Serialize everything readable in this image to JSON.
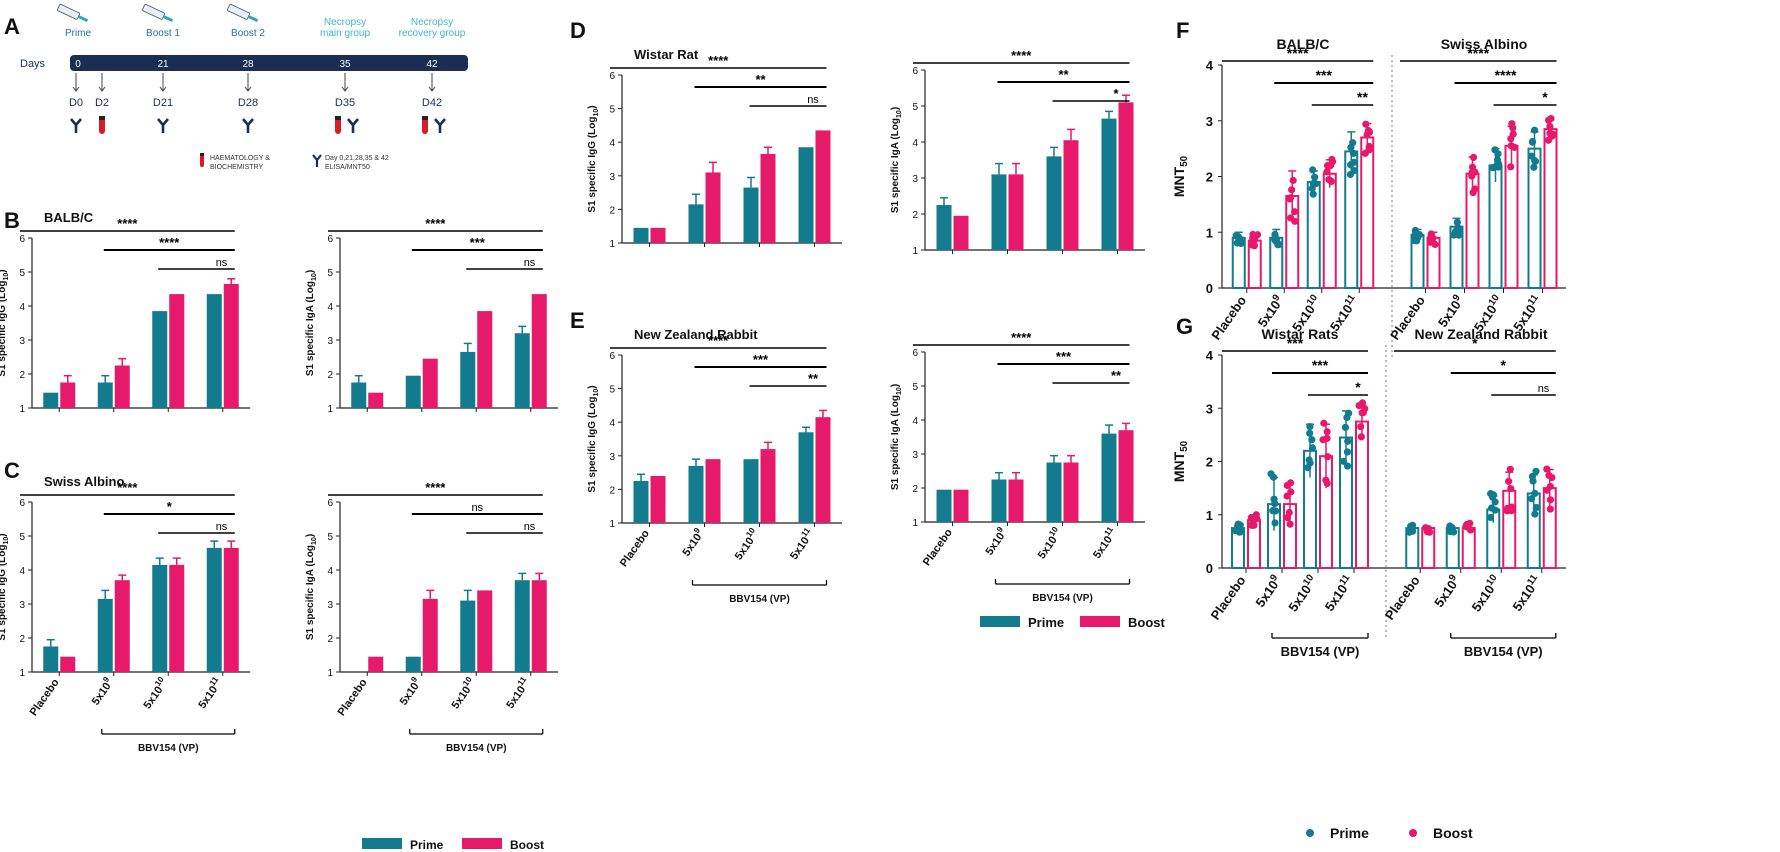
{
  "panel_letters": {
    "A": "A",
    "B": "B",
    "C": "C",
    "D": "D",
    "E": "E",
    "F": "F",
    "G": "G"
  },
  "colors": {
    "prime": "#137b8e",
    "boost": "#e6196a",
    "timeline": "#1a2e55",
    "text": "#111111",
    "grid": "#222222"
  },
  "timeline": {
    "days_label": "Days",
    "events": [
      {
        "label": "Prime",
        "day": "0",
        "color": "#2b6ca3"
      },
      {
        "label": "Boost 1",
        "day": "21",
        "color": "#2b6ca3"
      },
      {
        "label": "Boost 2",
        "day": "28",
        "color": "#2b6ca3"
      },
      {
        "label": "Necropsy main group",
        "day": "35",
        "color": "#3fb7c7"
      },
      {
        "label": "Necropsy recovery group",
        "day": "42",
        "color": "#3fb7c7"
      }
    ],
    "samples": [
      {
        "label": "D0",
        "tube": false,
        "ab": true
      },
      {
        "label": "D2",
        "tube": true,
        "ab": false
      },
      {
        "label": "D21",
        "tube": false,
        "ab": true
      },
      {
        "label": "D28",
        "tube": false,
        "ab": true
      },
      {
        "label": "D35",
        "tube": true,
        "ab": true
      },
      {
        "label": "D42",
        "tube": true,
        "ab": true
      }
    ],
    "legend_tube": "HAEMATOLOGY & BIOCHEMISTRY",
    "legend_ab": "Day 0,21,28,35 & 42 ELISA/MNT50"
  },
  "x_categories": [
    "Placebo",
    "5x10^9",
    "5x10^10",
    "5x10^11"
  ],
  "x_group_label": "BBV154 (VP)",
  "legend": {
    "prime": "Prime",
    "boost": "Boost"
  },
  "chart_data": [
    {
      "id": "B-IgG",
      "panel": "B",
      "title": "BALB/C",
      "type": "bar",
      "ylabel": "S1 specific IgG (Log10)",
      "ylim": [
        1,
        6
      ],
      "series": [
        {
          "name": "Prime",
          "values": [
            1.45,
            1.75,
            3.85,
            4.35
          ],
          "err": [
            0,
            0.2,
            0,
            0
          ]
        },
        {
          "name": "Boost",
          "values": [
            1.75,
            2.25,
            4.35,
            4.65
          ],
          "err": [
            0.2,
            0.2,
            0,
            0.15
          ]
        }
      ],
      "sig": [
        {
          "label": "****",
          "from": 0,
          "to": 3
        },
        {
          "label": "****",
          "from": 1,
          "to": 3
        },
        {
          "label": "ns",
          "from": 2,
          "to": 3
        }
      ]
    },
    {
      "id": "B-IgA",
      "panel": "B",
      "title": "",
      "type": "bar",
      "ylabel": "S1 specific IgA (Log10)",
      "ylim": [
        1,
        6
      ],
      "series": [
        {
          "name": "Prime",
          "values": [
            1.75,
            1.95,
            2.65,
            3.2
          ],
          "err": [
            0.2,
            0,
            0.25,
            0.2
          ]
        },
        {
          "name": "Boost",
          "values": [
            1.45,
            2.45,
            3.85,
            4.35
          ],
          "err": [
            0,
            0,
            0,
            0
          ]
        }
      ],
      "sig": [
        {
          "label": "****",
          "from": 0,
          "to": 3
        },
        {
          "label": "***",
          "from": 1,
          "to": 3
        },
        {
          "label": "ns",
          "from": 2,
          "to": 3
        }
      ]
    },
    {
      "id": "C-IgG",
      "panel": "C",
      "title": "Swiss Albino",
      "type": "bar",
      "ylabel": "S1 specific IgG (Log10)",
      "ylim": [
        1,
        6
      ],
      "series": [
        {
          "name": "Prime",
          "values": [
            1.75,
            3.15,
            4.15,
            4.65
          ],
          "err": [
            0.2,
            0.25,
            0.2,
            0.2
          ]
        },
        {
          "name": "Boost",
          "values": [
            1.45,
            3.7,
            4.15,
            4.65
          ],
          "err": [
            0,
            0.15,
            0.2,
            0.2
          ]
        }
      ],
      "sig": [
        {
          "label": "****",
          "from": 0,
          "to": 3
        },
        {
          "label": "*",
          "from": 1,
          "to": 3
        },
        {
          "label": "ns",
          "from": 2,
          "to": 3
        }
      ]
    },
    {
      "id": "C-IgA",
      "panel": "C",
      "title": "",
      "type": "bar",
      "ylabel": "S1 specific IgA (Log10)",
      "ylim": [
        1,
        6
      ],
      "series": [
        {
          "name": "Prime",
          "values": [
            1,
            1.45,
            3.1,
            3.7
          ],
          "err": [
            0,
            0,
            0.3,
            0.2
          ]
        },
        {
          "name": "Boost",
          "values": [
            1.45,
            3.15,
            3.4,
            3.7
          ],
          "err": [
            0,
            0.25,
            0,
            0.2
          ]
        }
      ],
      "sig": [
        {
          "label": "****",
          "from": 0,
          "to": 3
        },
        {
          "label": "ns",
          "from": 1,
          "to": 3
        },
        {
          "label": "ns",
          "from": 2,
          "to": 3
        }
      ]
    },
    {
      "id": "D-IgG",
      "panel": "D",
      "title": "Wistar Rat",
      "type": "bar",
      "ylabel": "S1 specific IgG (Log10)",
      "ylim": [
        1,
        6
      ],
      "series": [
        {
          "name": "Prime",
          "values": [
            1.45,
            2.15,
            2.65,
            3.85
          ],
          "err": [
            0,
            0.3,
            0.3,
            0
          ]
        },
        {
          "name": "Boost",
          "values": [
            1.45,
            3.1,
            3.65,
            4.35
          ],
          "err": [
            0,
            0.3,
            0.2,
            0
          ]
        }
      ],
      "sig": [
        {
          "label": "****",
          "from": 0,
          "to": 3
        },
        {
          "label": "**",
          "from": 1,
          "to": 3
        },
        {
          "label": "ns",
          "from": 2,
          "to": 3
        }
      ]
    },
    {
      "id": "D-IgA",
      "panel": "D",
      "title": "",
      "type": "bar",
      "ylabel": "S1 specific IgA (Log10)",
      "ylim": [
        1,
        6
      ],
      "series": [
        {
          "name": "Prime",
          "values": [
            2.25,
            3.1,
            3.6,
            4.65
          ],
          "err": [
            0.2,
            0.3,
            0.25,
            0.2
          ]
        },
        {
          "name": "Boost",
          "values": [
            1.95,
            3.1,
            4.05,
            5.1
          ],
          "err": [
            0,
            0.3,
            0.3,
            0.2
          ]
        }
      ],
      "sig": [
        {
          "label": "****",
          "from": 0,
          "to": 3
        },
        {
          "label": "**",
          "from": 1,
          "to": 3
        },
        {
          "label": "*",
          "from": 2,
          "to": 3
        }
      ]
    },
    {
      "id": "E-IgG",
      "panel": "E",
      "title": "New Zealand Rabbit",
      "type": "bar",
      "ylabel": "S1 specific IgG (Log10)",
      "ylim": [
        1,
        6
      ],
      "series": [
        {
          "name": "Prime",
          "values": [
            2.25,
            2.7,
            2.9,
            3.7
          ],
          "err": [
            0.2,
            0.2,
            0,
            0.15
          ]
        },
        {
          "name": "Boost",
          "values": [
            2.4,
            2.9,
            3.2,
            4.15
          ],
          "err": [
            0,
            0,
            0.2,
            0.2
          ]
        }
      ],
      "sig": [
        {
          "label": "****",
          "from": 0,
          "to": 3
        },
        {
          "label": "***",
          "from": 1,
          "to": 3
        },
        {
          "label": "**",
          "from": 2,
          "to": 3
        }
      ]
    },
    {
      "id": "E-IgA",
      "panel": "E",
      "title": "",
      "type": "bar",
      "ylabel": "S1 specific IgA (Log10)",
      "ylim": [
        1,
        6
      ],
      "series": [
        {
          "name": "Prime",
          "values": [
            1.95,
            2.25,
            2.75,
            3.6
          ],
          "err": [
            0,
            0.2,
            0.2,
            0.25
          ]
        },
        {
          "name": "Boost",
          "values": [
            1.95,
            2.25,
            2.75,
            3.7
          ],
          "err": [
            0,
            0.2,
            0.2,
            0.2
          ]
        }
      ],
      "sig": [
        {
          "label": "****",
          "from": 0,
          "to": 3
        },
        {
          "label": "***",
          "from": 1,
          "to": 3
        },
        {
          "label": "**",
          "from": 2,
          "to": 3
        }
      ]
    },
    {
      "id": "F",
      "panel": "F",
      "type": "bar_scatter",
      "ylabel": "MNT50",
      "ylim": [
        0,
        4
      ],
      "groups": [
        {
          "title": "BALB/C",
          "series": [
            {
              "name": "Prime",
              "values": [
                0.9,
                0.9,
                1.9,
                2.45
              ],
              "err": [
                0.1,
                0.15,
                0.2,
                0.35
              ]
            },
            {
              "name": "Boost",
              "values": [
                0.85,
                1.65,
                2.05,
                2.7
              ],
              "err": [
                0.1,
                0.45,
                0.25,
                0.25
              ]
            }
          ],
          "sig": [
            {
              "label": "****",
              "from": 0,
              "to": 3
            },
            {
              "label": "***",
              "from": 1,
              "to": 3
            },
            {
              "label": "**",
              "from": 2,
              "to": 3
            }
          ]
        },
        {
          "title": "Swiss Albino",
          "series": [
            {
              "name": "Prime",
              "values": [
                0.95,
                1.1,
                2.2,
                2.5
              ],
              "err": [
                0.1,
                0.15,
                0.3,
                0.3
              ]
            },
            {
              "name": "Boost",
              "values": [
                0.9,
                2.05,
                2.55,
                2.85
              ],
              "err": [
                0.1,
                0.3,
                0.35,
                0.2
              ]
            }
          ],
          "sig": [
            {
              "label": "****",
              "from": 0,
              "to": 3
            },
            {
              "label": "****",
              "from": 1,
              "to": 3
            },
            {
              "label": "*",
              "from": 2,
              "to": 3
            }
          ]
        }
      ]
    },
    {
      "id": "G",
      "panel": "G",
      "type": "bar_scatter",
      "ylabel": "MNT50",
      "ylim": [
        0,
        4
      ],
      "groups": [
        {
          "title": "Wistar Rats",
          "series": [
            {
              "name": "Prime",
              "values": [
                0.75,
                1.2,
                2.2,
                2.45
              ],
              "err": [
                0.05,
                0.5,
                0.5,
                0.5
              ]
            },
            {
              "name": "Boost",
              "values": [
                0.9,
                1.2,
                2.1,
                2.75
              ],
              "err": [
                0.1,
                0.4,
                0.6,
                0.3
              ]
            }
          ],
          "sig": [
            {
              "label": "***",
              "from": 0,
              "to": 3
            },
            {
              "label": "***",
              "from": 1,
              "to": 3
            },
            {
              "label": "*",
              "from": 2,
              "to": 3
            }
          ]
        },
        {
          "title": "New Zealand Rabbit",
          "series": [
            {
              "name": "Prime",
              "values": [
                0.75,
                0.75,
                1.1,
                1.4
              ],
              "err": [
                0,
                0,
                0.25,
                0.35
              ]
            },
            {
              "name": "Boost",
              "values": [
                0.75,
                0.75,
                1.45,
                1.5
              ],
              "err": [
                0,
                0,
                0.35,
                0.35
              ]
            }
          ],
          "sig": [
            {
              "label": "*",
              "from": 0,
              "to": 3
            },
            {
              "label": "*",
              "from": 1,
              "to": 3
            },
            {
              "label": "ns",
              "from": 2,
              "to": 3
            }
          ]
        }
      ]
    }
  ]
}
